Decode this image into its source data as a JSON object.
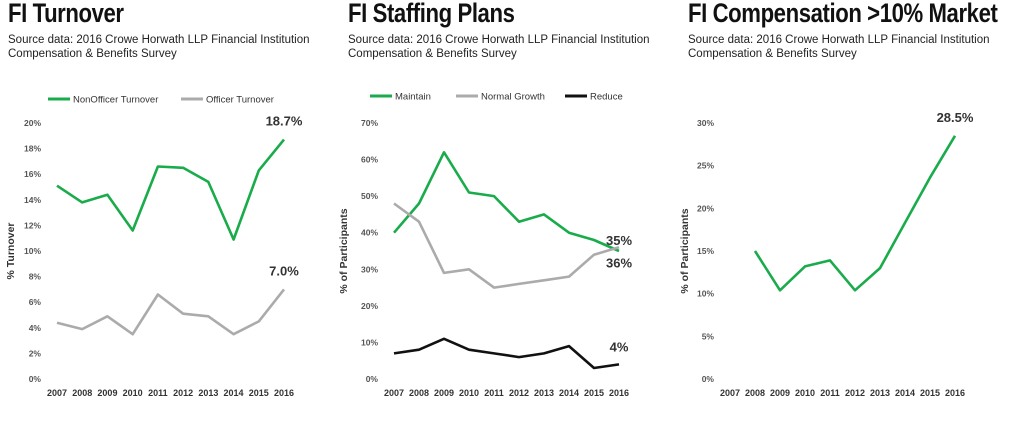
{
  "charts": [
    {
      "title": "FI Turnover",
      "source": "Source data: 2016 Crowe Horwath LLP Financial Institution Compensation & Benefits Survey"
    },
    {
      "title": "FI Staffing Plans",
      "source": "Source data: 2016 Crowe Horwath LLP Financial Institution Compensation & Benefits Survey"
    },
    {
      "title": "FI Compensation >10% Market",
      "source": "Source data: 2016 Crowe Horwath LLP Financial Institution Compensation & Benefits Survey"
    }
  ],
  "colors": {
    "green": "#1aab4b",
    "gray": "#ababab",
    "black": "#111111",
    "axis": "#444444"
  },
  "chart_data": [
    {
      "type": "line",
      "title": "FI Turnover",
      "ylabel": "% Turnover",
      "x": [
        "2007",
        "2008",
        "2009",
        "2010",
        "2011",
        "2012",
        "2013",
        "2014",
        "2015",
        "2016"
      ],
      "ylim": [
        0,
        20
      ],
      "yticks": [
        "0%",
        "2%",
        "4%",
        "6%",
        "8%",
        "10%",
        "12%",
        "14%",
        "16%",
        "18%",
        "20%"
      ],
      "ytick_values": [
        0,
        2,
        4,
        6,
        8,
        10,
        12,
        14,
        16,
        18,
        20
      ],
      "legend_position": "top",
      "grid": false,
      "series": [
        {
          "name": "NonOfficer Turnover",
          "color": "#1aab4b",
          "values": [
            15.1,
            13.8,
            14.4,
            11.6,
            16.6,
            16.5,
            15.4,
            10.9,
            16.3,
            18.7
          ],
          "end_label": "18.7%"
        },
        {
          "name": "Officer Turnover",
          "color": "#ababab",
          "values": [
            4.4,
            3.9,
            4.9,
            3.5,
            6.6,
            5.1,
            4.9,
            3.5,
            4.5,
            7.0
          ],
          "end_label": "7.0%"
        }
      ]
    },
    {
      "type": "line",
      "title": "FI Staffing Plans",
      "ylabel": "% of Participants",
      "x": [
        "2007",
        "2008",
        "2009",
        "2010",
        "2011",
        "2012",
        "2013",
        "2014",
        "2015",
        "2016"
      ],
      "ylim": [
        0,
        70
      ],
      "yticks": [
        "0%",
        "10%",
        "20%",
        "30%",
        "40%",
        "50%",
        "60%",
        "70%"
      ],
      "ytick_values": [
        0,
        10,
        20,
        30,
        40,
        50,
        60,
        70
      ],
      "legend_position": "top",
      "grid": false,
      "series": [
        {
          "name": "Maintain",
          "color": "#1aab4b",
          "values": [
            40,
            48,
            62,
            51,
            50,
            43,
            45,
            40,
            38,
            35
          ],
          "end_label": "35%"
        },
        {
          "name": "Normal Growth",
          "color": "#ababab",
          "values": [
            48,
            43,
            29,
            30,
            25,
            26,
            27,
            28,
            34,
            36
          ],
          "end_label": "36%"
        },
        {
          "name": "Reduce",
          "color": "#111111",
          "values": [
            7,
            8,
            11,
            8,
            7,
            6,
            7,
            9,
            3,
            4
          ],
          "end_label": "4%"
        }
      ]
    },
    {
      "type": "line",
      "title": "FI Compensation >10% Market",
      "ylabel": "% of Participants",
      "x": [
        "2007",
        "2008",
        "2009",
        "2010",
        "2011",
        "2012",
        "2013",
        "2014",
        "2015",
        "2016"
      ],
      "ylim": [
        0,
        30
      ],
      "yticks": [
        "0%",
        "5%",
        "10%",
        "15%",
        "20%",
        "25%",
        "30%"
      ],
      "ytick_values": [
        0,
        5,
        10,
        15,
        20,
        25,
        30
      ],
      "grid": false,
      "series": [
        {
          "color": "#1aab4b",
          "values": [
            null,
            15.0,
            10.4,
            13.2,
            13.9,
            10.4,
            13.0,
            18.3,
            23.6,
            28.5
          ],
          "end_label": "28.5%"
        }
      ]
    }
  ]
}
